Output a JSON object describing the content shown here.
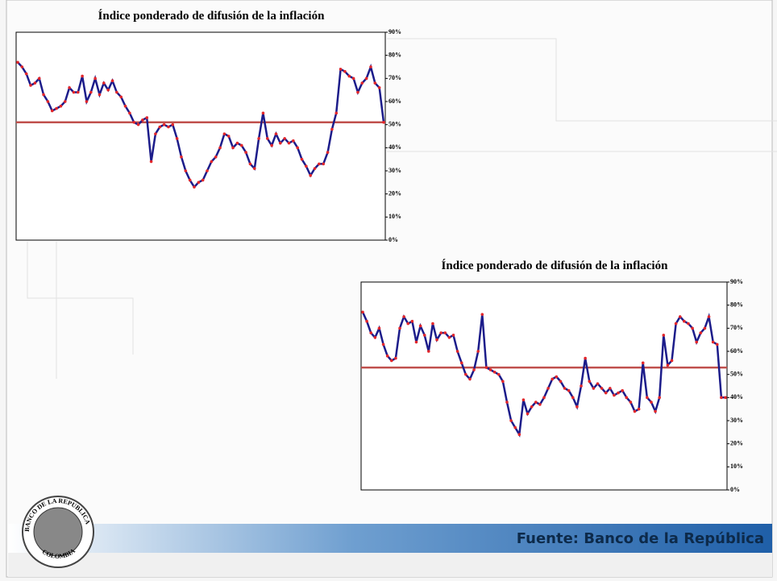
{
  "chart_data": [
    {
      "type": "line",
      "title": "Índice ponderado de difusión de la inflación",
      "series": [
        {
          "color": "#1c1c8a",
          "marker_color": "#e3262a",
          "values": [
            77,
            75,
            72,
            67,
            68,
            70,
            63,
            60,
            56,
            57,
            58,
            60,
            66,
            64,
            64,
            71,
            60,
            64,
            70,
            63,
            68,
            65,
            69,
            64,
            62,
            58,
            55,
            51,
            50,
            52,
            53,
            34,
            46,
            49,
            50,
            49,
            50,
            44,
            36,
            30,
            26,
            23,
            25,
            26,
            30,
            34,
            36,
            40,
            46,
            45,
            40,
            42,
            41,
            38,
            33,
            31,
            44,
            55,
            44,
            41,
            46,
            42,
            44,
            42,
            43,
            40,
            35,
            32,
            28,
            31,
            33,
            33,
            38,
            48,
            55,
            74,
            73,
            71,
            70,
            64,
            68,
            70,
            75,
            68,
            66,
            51
          ]
        }
      ],
      "reference_line": {
        "value": 51,
        "color": "#c0504d"
      },
      "ylim": [
        0,
        90
      ],
      "yticks": [
        {
          "value": 0,
          "label": "0%"
        },
        {
          "value": 10,
          "label": "10%"
        },
        {
          "value": 20,
          "label": "20%"
        },
        {
          "value": 30,
          "label": "30%"
        },
        {
          "value": 40,
          "label": "40%"
        },
        {
          "value": 50,
          "label": "50%"
        },
        {
          "value": 60,
          "label": "60%"
        },
        {
          "value": 70,
          "label": "70%"
        },
        {
          "value": 80,
          "label": "80%"
        },
        {
          "value": 90,
          "label": "90%"
        }
      ]
    },
    {
      "type": "line",
      "title": "Índice ponderado de difusión de la inflación",
      "series": [
        {
          "color": "#1c1c8a",
          "marker_color": "#e3262a",
          "values": [
            77,
            73,
            68,
            66,
            70,
            63,
            58,
            56,
            57,
            70,
            75,
            72,
            73,
            64,
            71,
            67,
            60,
            72,
            65,
            68,
            68,
            66,
            67,
            60,
            55,
            50,
            48,
            52,
            60,
            76,
            53,
            52,
            51,
            50,
            47,
            38,
            30,
            27,
            24,
            39,
            33,
            36,
            38,
            37,
            40,
            44,
            48,
            49,
            47,
            44,
            43,
            40,
            36,
            45,
            57,
            47,
            44,
            46,
            44,
            42,
            44,
            41,
            42,
            43,
            40,
            38,
            34,
            35,
            55,
            40,
            38,
            34,
            40,
            67,
            54,
            56,
            72,
            75,
            73,
            72,
            70,
            64,
            68,
            70,
            75,
            64,
            63,
            40,
            40
          ]
        }
      ],
      "reference_line": {
        "value": 53,
        "color": "#c0504d"
      },
      "ylim": [
        0,
        90
      ],
      "yticks": [
        {
          "value": 0,
          "label": "0%"
        },
        {
          "value": 10,
          "label": "10%"
        },
        {
          "value": 20,
          "label": "20%"
        },
        {
          "value": 30,
          "label": "30%"
        },
        {
          "value": 40,
          "label": "40%"
        },
        {
          "value": 50,
          "label": "50%"
        },
        {
          "value": 60,
          "label": "60%"
        },
        {
          "value": 70,
          "label": "70%"
        },
        {
          "value": 80,
          "label": "80%"
        },
        {
          "value": 90,
          "label": "90%"
        }
      ]
    }
  ],
  "footer": {
    "source": "Fuente: Banco de la República"
  },
  "logo": {
    "top": "BANCO DE LA REPUBLICA",
    "bottom": "COLOMBIA"
  }
}
